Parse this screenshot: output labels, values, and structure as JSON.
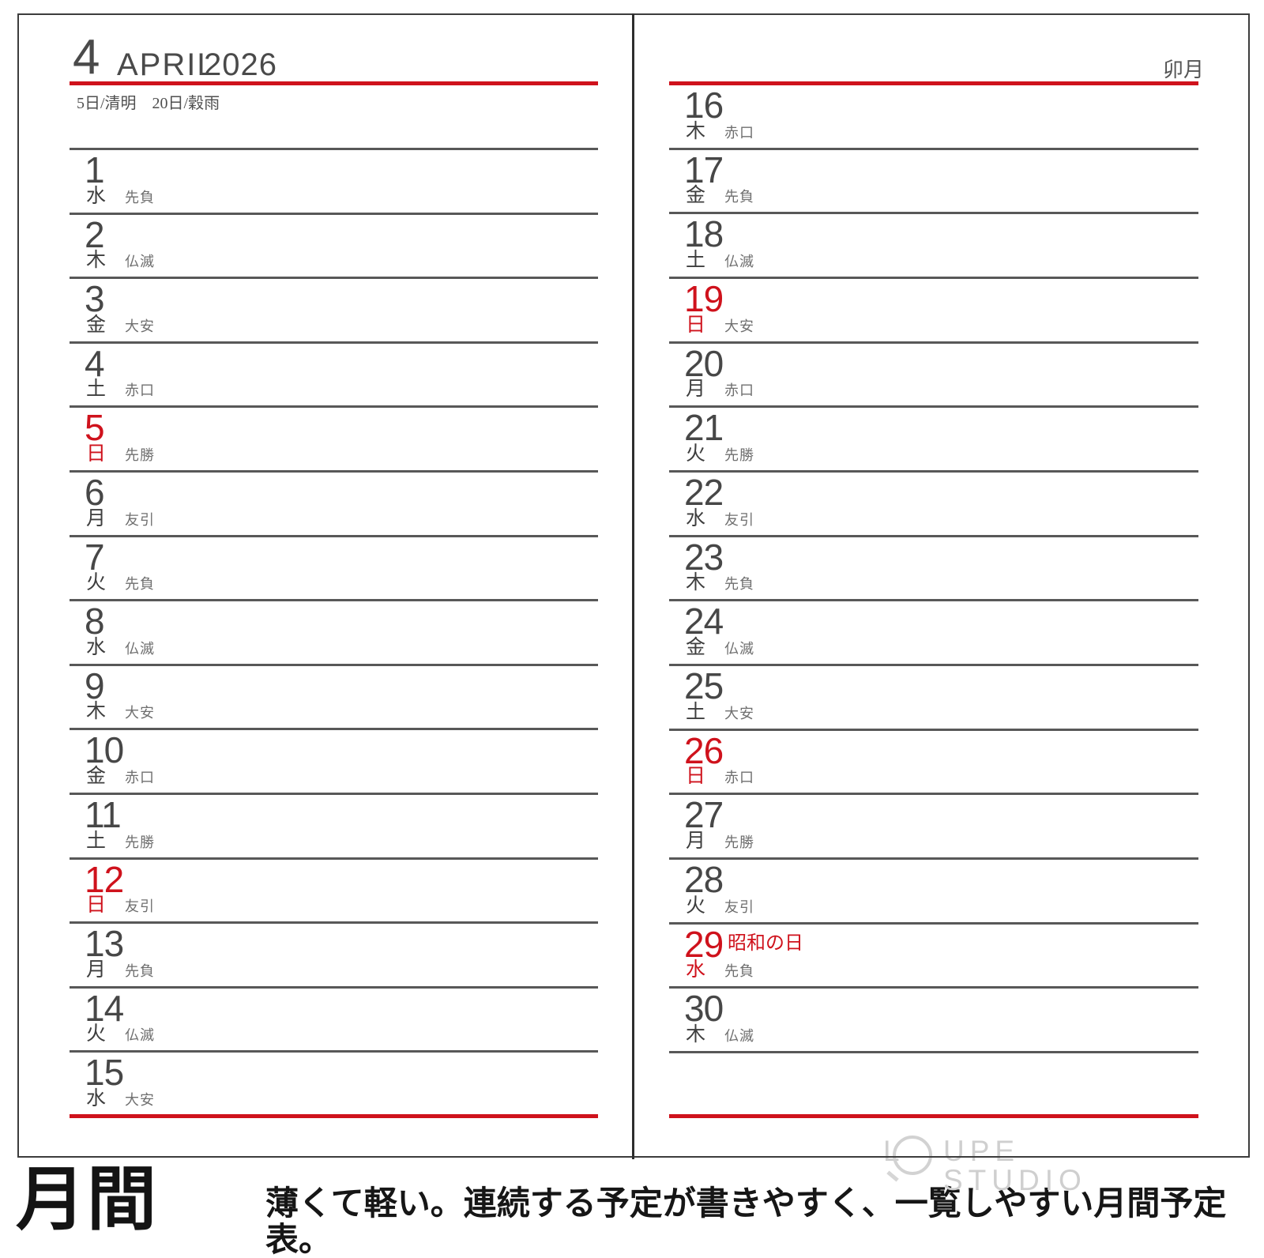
{
  "header": {
    "month_number": "4",
    "month_name": "APRIL",
    "year": "2026",
    "solar_terms": "5日/清明　20日/穀雨",
    "month_name_traditional": "卯月"
  },
  "calendar": {
    "left_days": [
      {
        "date": "1",
        "weekday": "水",
        "rokuyo": "先負",
        "holiday": "",
        "red": false
      },
      {
        "date": "2",
        "weekday": "木",
        "rokuyo": "仏滅",
        "holiday": "",
        "red": false
      },
      {
        "date": "3",
        "weekday": "金",
        "rokuyo": "大安",
        "holiday": "",
        "red": false
      },
      {
        "date": "4",
        "weekday": "土",
        "rokuyo": "赤口",
        "holiday": "",
        "red": false
      },
      {
        "date": "5",
        "weekday": "日",
        "rokuyo": "先勝",
        "holiday": "",
        "red": true
      },
      {
        "date": "6",
        "weekday": "月",
        "rokuyo": "友引",
        "holiday": "",
        "red": false
      },
      {
        "date": "7",
        "weekday": "火",
        "rokuyo": "先負",
        "holiday": "",
        "red": false
      },
      {
        "date": "8",
        "weekday": "水",
        "rokuyo": "仏滅",
        "holiday": "",
        "red": false
      },
      {
        "date": "9",
        "weekday": "木",
        "rokuyo": "大安",
        "holiday": "",
        "red": false
      },
      {
        "date": "10",
        "weekday": "金",
        "rokuyo": "赤口",
        "holiday": "",
        "red": false
      },
      {
        "date": "11",
        "weekday": "土",
        "rokuyo": "先勝",
        "holiday": "",
        "red": false
      },
      {
        "date": "12",
        "weekday": "日",
        "rokuyo": "友引",
        "holiday": "",
        "red": true
      },
      {
        "date": "13",
        "weekday": "月",
        "rokuyo": "先負",
        "holiday": "",
        "red": false
      },
      {
        "date": "14",
        "weekday": "火",
        "rokuyo": "仏滅",
        "holiday": "",
        "red": false
      },
      {
        "date": "15",
        "weekday": "水",
        "rokuyo": "大安",
        "holiday": "",
        "red": false
      }
    ],
    "right_days": [
      {
        "date": "16",
        "weekday": "木",
        "rokuyo": "赤口",
        "holiday": "",
        "red": false
      },
      {
        "date": "17",
        "weekday": "金",
        "rokuyo": "先負",
        "holiday": "",
        "red": false
      },
      {
        "date": "18",
        "weekday": "土",
        "rokuyo": "仏滅",
        "holiday": "",
        "red": false
      },
      {
        "date": "19",
        "weekday": "日",
        "rokuyo": "大安",
        "holiday": "",
        "red": true
      },
      {
        "date": "20",
        "weekday": "月",
        "rokuyo": "赤口",
        "holiday": "",
        "red": false
      },
      {
        "date": "21",
        "weekday": "火",
        "rokuyo": "先勝",
        "holiday": "",
        "red": false
      },
      {
        "date": "22",
        "weekday": "水",
        "rokuyo": "友引",
        "holiday": "",
        "red": false
      },
      {
        "date": "23",
        "weekday": "木",
        "rokuyo": "先負",
        "holiday": "",
        "red": false
      },
      {
        "date": "24",
        "weekday": "金",
        "rokuyo": "仏滅",
        "holiday": "",
        "red": false
      },
      {
        "date": "25",
        "weekday": "土",
        "rokuyo": "大安",
        "holiday": "",
        "red": false
      },
      {
        "date": "26",
        "weekday": "日",
        "rokuyo": "赤口",
        "holiday": "",
        "red": true
      },
      {
        "date": "27",
        "weekday": "月",
        "rokuyo": "先勝",
        "holiday": "",
        "red": false
      },
      {
        "date": "28",
        "weekday": "火",
        "rokuyo": "友引",
        "holiday": "",
        "red": false
      },
      {
        "date": "29",
        "weekday": "水",
        "rokuyo": "先負",
        "holiday": "昭和の日",
        "red": true
      },
      {
        "date": "30",
        "weekday": "木",
        "rokuyo": "仏滅",
        "holiday": "",
        "red": false
      }
    ]
  },
  "footer": {
    "watermark": "LOUPE STUDIO",
    "watermark_parts": {
      "l": "L",
      "rest": "UPE STUDIO"
    },
    "caption_title": "月間",
    "caption_text": "薄くて軽い。連続する予定が書きやすく、一覧しやすい月間予定表。"
  },
  "colors": {
    "accent_red": "#cf121c",
    "line_gray": "#585858",
    "border_gray": "#3d3d3d",
    "text_gray": "#474747",
    "rokuyo_gray": "#6f6f6f",
    "watermark_gray": "#cfcfcf"
  }
}
